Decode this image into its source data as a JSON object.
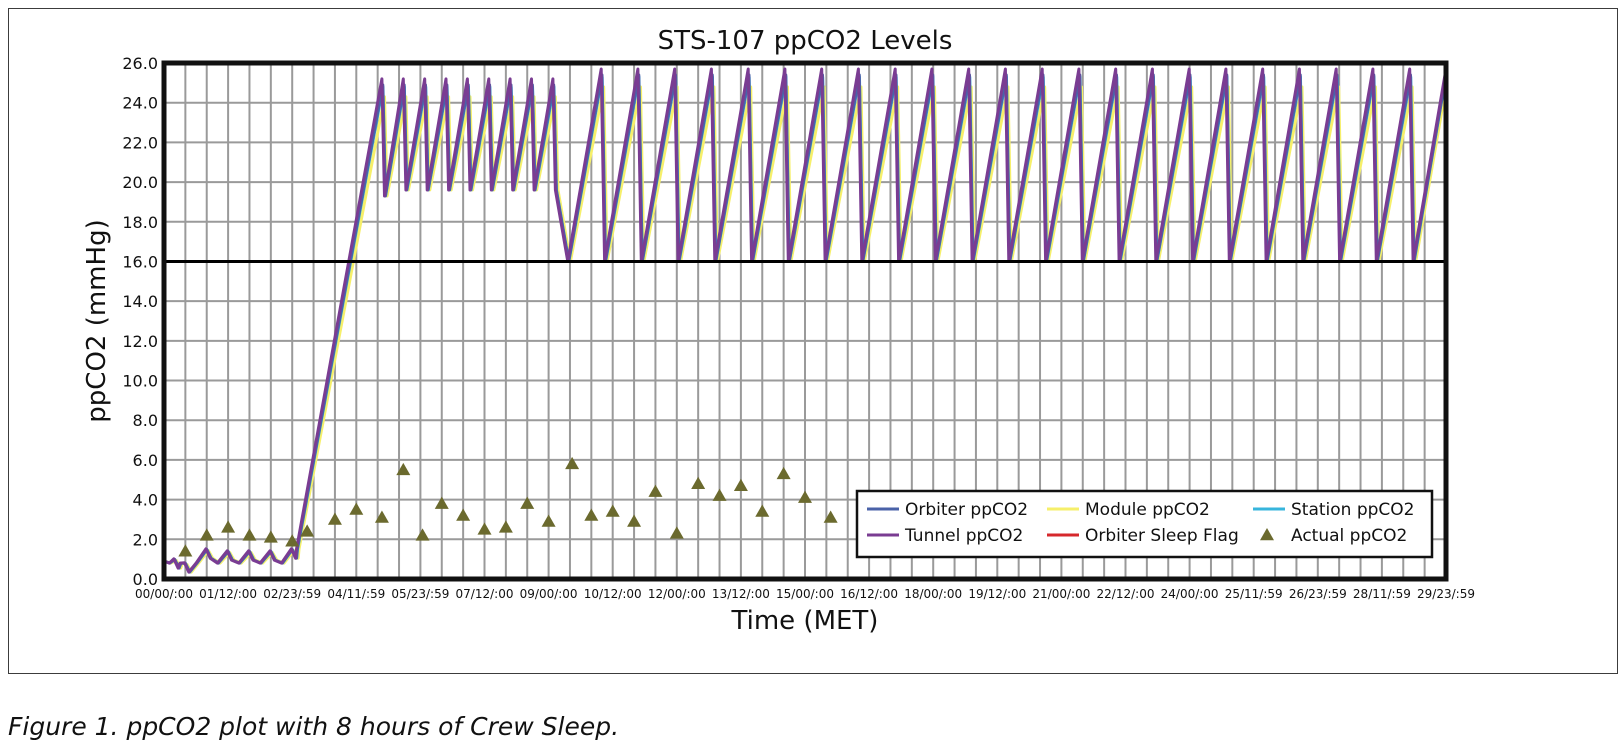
{
  "chart_data": {
    "type": "line",
    "title": "STS-107 ppCO2 Levels",
    "xlabel": "Time (MET)",
    "ylabel": "ppCO2 (mmHg)",
    "ylim": [
      0,
      26
    ],
    "yticks": [
      "0.0",
      "2.0",
      "4.0",
      "6.0",
      "8.0",
      "10.0",
      "12.0",
      "14.0",
      "16.0",
      "18.0",
      "20.0",
      "22.0",
      "24.0",
      "26.0"
    ],
    "xlim_days": [
      0,
      30
    ],
    "xticks": [
      {
        "label": "00/00/:00",
        "day": 0.0
      },
      {
        "label": "01/12/:00",
        "day": 1.5
      },
      {
        "label": "02/23/:59",
        "day": 3.0
      },
      {
        "label": "04/11/:59",
        "day": 4.5
      },
      {
        "label": "05/23/:59",
        "day": 6.0
      },
      {
        "label": "07/12/:00",
        "day": 7.5
      },
      {
        "label": "09/00/:00",
        "day": 9.0
      },
      {
        "label": "10/12/:00",
        "day": 10.5
      },
      {
        "label": "12/00/:00",
        "day": 12.0
      },
      {
        "label": "13/12/:00",
        "day": 13.5
      },
      {
        "label": "15/00/:00",
        "day": 15.0
      },
      {
        "label": "16/12/:00",
        "day": 16.5
      },
      {
        "label": "18/00/:00",
        "day": 18.0
      },
      {
        "label": "19/12/:00",
        "day": 19.5
      },
      {
        "label": "21/00/:00",
        "day": 21.0
      },
      {
        "label": "22/12/:00",
        "day": 22.5
      },
      {
        "label": "24/00/:00",
        "day": 24.0
      },
      {
        "label": "25/11/:59",
        "day": 25.5
      },
      {
        "label": "26/23/:59",
        "day": 27.0
      },
      {
        "label": "28/11/:59",
        "day": 28.5
      },
      {
        "label": "29/23/:59",
        "day": 30.0
      }
    ],
    "reference_line": 16.0,
    "grid": true,
    "legend_position": "bottom-right",
    "legend": [
      {
        "name": "Orbiter ppCO2",
        "color": "#4a62a8",
        "kind": "line"
      },
      {
        "name": "Module ppCO2",
        "color": "#f6ef6a",
        "kind": "line"
      },
      {
        "name": "Station ppCO2",
        "color": "#37b5dc",
        "kind": "line"
      },
      {
        "name": "Tunnel ppCO2",
        "color": "#7a3c92",
        "kind": "line"
      },
      {
        "name": "Orbiter Sleep Flag",
        "color": "#d6282c",
        "kind": "line"
      },
      {
        "name": "Actual ppCO2",
        "color": "#6b6a2e",
        "kind": "triangle"
      }
    ],
    "sawtooth_segments": [
      {
        "start_day": 0.0,
        "end_day": 3.1,
        "peaks": [
          [
            0.25,
            1.0
          ],
          [
            0.5,
            0.8
          ],
          [
            1.0,
            1.5
          ],
          [
            1.5,
            1.4
          ],
          [
            2.0,
            1.4
          ],
          [
            2.5,
            1.4
          ],
          [
            3.0,
            1.5
          ]
        ],
        "troughs_min": 0.8
      },
      {
        "ramp": [
          [
            3.1,
            1.5
          ],
          [
            5.1,
            25.0
          ]
        ]
      },
      {
        "start_day": 5.1,
        "end_day": 9.3,
        "peak": 25.0,
        "trough": 19.6,
        "period_days": 0.5
      },
      {
        "start_day": 9.3,
        "end_day": 30.0,
        "peak": 25.5,
        "trough": 16.0,
        "period_days": 0.86
      }
    ],
    "actual_ppco2": [
      {
        "day": 0.5,
        "value": 1.4
      },
      {
        "day": 1.0,
        "value": 2.2
      },
      {
        "day": 1.5,
        "value": 2.6
      },
      {
        "day": 2.0,
        "value": 2.2
      },
      {
        "day": 2.5,
        "value": 2.1
      },
      {
        "day": 3.0,
        "value": 1.9
      },
      {
        "day": 3.35,
        "value": 2.4
      },
      {
        "day": 4.0,
        "value": 3.0
      },
      {
        "day": 4.5,
        "value": 3.5
      },
      {
        "day": 5.1,
        "value": 3.1
      },
      {
        "day": 5.6,
        "value": 5.5
      },
      {
        "day": 6.05,
        "value": 2.2
      },
      {
        "day": 6.5,
        "value": 3.8
      },
      {
        "day": 7.0,
        "value": 3.2
      },
      {
        "day": 7.5,
        "value": 2.5
      },
      {
        "day": 8.0,
        "value": 2.6
      },
      {
        "day": 8.5,
        "value": 3.8
      },
      {
        "day": 9.0,
        "value": 2.9
      },
      {
        "day": 9.55,
        "value": 5.8
      },
      {
        "day": 10.0,
        "value": 3.2
      },
      {
        "day": 10.5,
        "value": 3.4
      },
      {
        "day": 11.0,
        "value": 2.9
      },
      {
        "day": 11.5,
        "value": 4.4
      },
      {
        "day": 12.0,
        "value": 2.3
      },
      {
        "day": 12.5,
        "value": 4.8
      },
      {
        "day": 13.0,
        "value": 4.2
      },
      {
        "day": 13.5,
        "value": 4.7
      },
      {
        "day": 14.0,
        "value": 3.4
      },
      {
        "day": 14.5,
        "value": 5.3
      },
      {
        "day": 15.0,
        "value": 4.1
      },
      {
        "day": 15.6,
        "value": 3.1
      }
    ]
  },
  "caption": "Figure 1. ppCO2 plot with 8 hours of Crew Sleep."
}
